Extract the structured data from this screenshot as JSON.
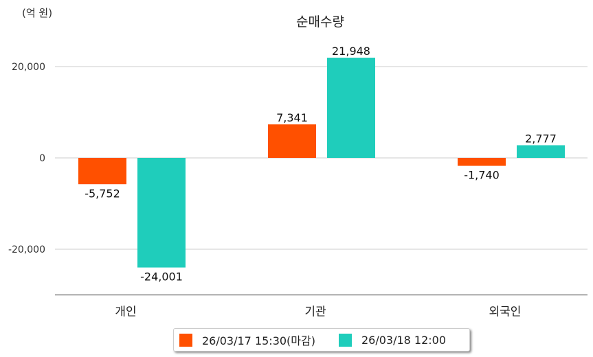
{
  "chart_data": {
    "type": "bar",
    "title": "순매수량",
    "ylabel": "(억 원)",
    "categories": [
      "개인",
      "기관",
      "외국인"
    ],
    "series": [
      {
        "name": "26/03/17 15:30(마감)",
        "color": "#ff5000",
        "values": [
          -5752,
          7341,
          -1740
        ],
        "labels": [
          "-5,752",
          "7,341",
          "-1,740"
        ]
      },
      {
        "name": "26/03/18 12:00",
        "color": "#1fcdbb",
        "values": [
          -24001,
          21948,
          2777
        ],
        "labels": [
          "-24,001",
          "21,948",
          "2,777"
        ]
      }
    ],
    "yticks": [
      20000,
      0,
      -20000
    ],
    "ytick_labels": [
      "20,000",
      "0",
      "-20,000"
    ],
    "ylim": [
      -30000,
      25000
    ],
    "grid": true,
    "legend": "bottom"
  }
}
